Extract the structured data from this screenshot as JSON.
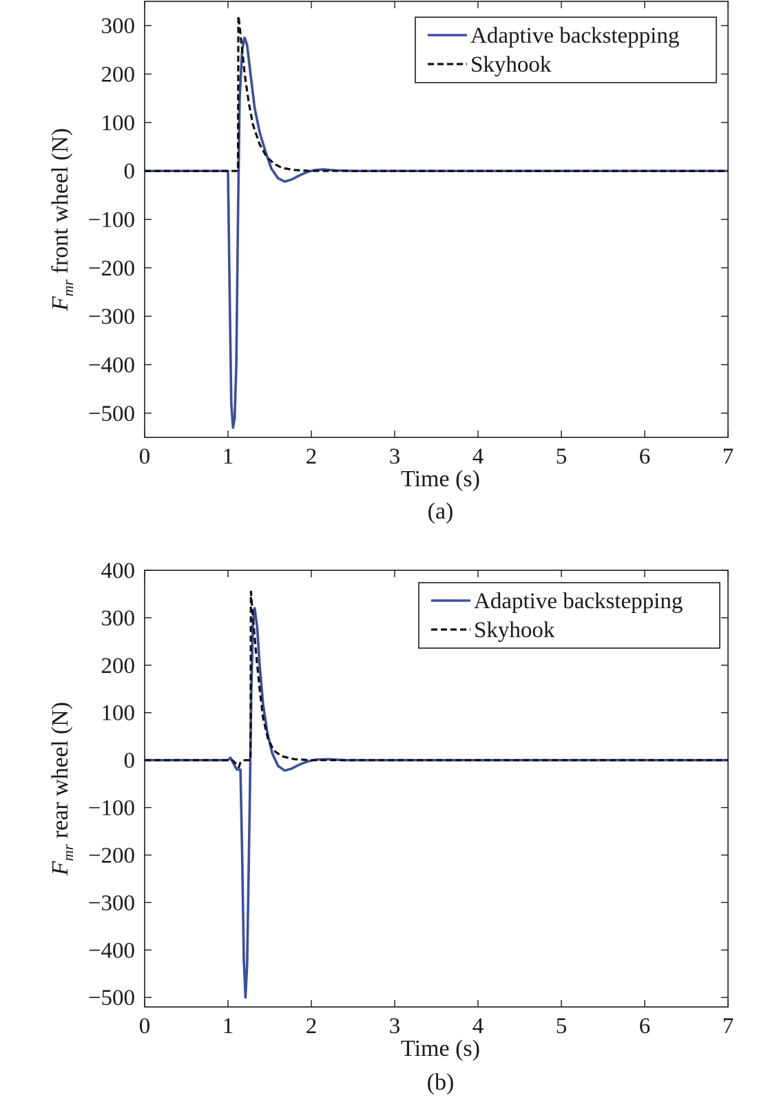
{
  "chart_data": [
    {
      "type": "line",
      "panel_label": "(a)",
      "ylabel_symbol": "F",
      "ylabel_subscript": "mr",
      "ylabel_text": " front wheel (N)",
      "xlabel": "Time (s)",
      "xlim": [
        0,
        7
      ],
      "ylim": [
        -550,
        350
      ],
      "xticks": [
        "0",
        "1",
        "2",
        "3",
        "4",
        "5",
        "6",
        "7"
      ],
      "xtick_values": [
        0,
        1,
        2,
        3,
        4,
        5,
        6,
        7
      ],
      "yticks": [
        "300",
        "200",
        "100",
        "0",
        "−100",
        "−200",
        "−300",
        "−400",
        "−500"
      ],
      "ytick_values": [
        300,
        200,
        100,
        0,
        -100,
        -200,
        -300,
        -400,
        -500
      ],
      "legend": {
        "placement": "top-right",
        "entries": [
          "Adaptive backstepping",
          "Skyhook"
        ]
      },
      "series": [
        {
          "name": "Adaptive backstepping",
          "color": "#3a4fa0",
          "style": "solid",
          "x": [
            0,
            1.0,
            1.02,
            1.04,
            1.06,
            1.08,
            1.1,
            1.12,
            1.14,
            1.17,
            1.2,
            1.23,
            1.27,
            1.32,
            1.38,
            1.45,
            1.52,
            1.6,
            1.68,
            1.76,
            1.85,
            1.95,
            2.05,
            2.15,
            2.3,
            2.5,
            7
          ],
          "y": [
            0,
            0,
            -250,
            -480,
            -530,
            -510,
            -400,
            -100,
            150,
            250,
            275,
            260,
            200,
            130,
            80,
            40,
            5,
            -15,
            -22,
            -18,
            -10,
            -2,
            2,
            3,
            1,
            0,
            0
          ]
        },
        {
          "name": "Skyhook",
          "color": "#111111",
          "style": "dashed",
          "x": [
            0,
            1.12,
            1.125,
            1.14,
            1.17,
            1.2,
            1.25,
            1.3,
            1.38,
            1.46,
            1.55,
            1.65,
            1.8,
            2.0,
            2.2,
            7
          ],
          "y": [
            0,
            0,
            320,
            300,
            250,
            200,
            140,
            95,
            55,
            30,
            15,
            6,
            2,
            0,
            0,
            0
          ]
        }
      ]
    },
    {
      "type": "line",
      "panel_label": "(b)",
      "ylabel_symbol": "F",
      "ylabel_subscript": "mr",
      "ylabel_text": " rear wheel (N)",
      "xlabel": "Time (s)",
      "xlim": [
        0,
        7
      ],
      "ylim": [
        -520,
        400
      ],
      "xticks": [
        "0",
        "1",
        "2",
        "3",
        "4",
        "5",
        "6",
        "7"
      ],
      "xtick_values": [
        0,
        1,
        2,
        3,
        4,
        5,
        6,
        7
      ],
      "yticks": [
        "400",
        "300",
        "200",
        "100",
        "0",
        "−100",
        "−200",
        "−300",
        "−400",
        "−500"
      ],
      "ytick_values": [
        400,
        300,
        200,
        100,
        0,
        -100,
        -200,
        -300,
        -400,
        -500
      ],
      "legend": {
        "placement": "top-right",
        "entries": [
          "Adaptive backstepping",
          "Skyhook"
        ]
      },
      "series": [
        {
          "name": "Adaptive backstepping",
          "color": "#3a4fa0",
          "style": "solid",
          "x": [
            0,
            1.0,
            1.03,
            1.06,
            1.09,
            1.11,
            1.15,
            1.17,
            1.19,
            1.21,
            1.23,
            1.26,
            1.28,
            1.3,
            1.32,
            1.35,
            1.38,
            1.42,
            1.47,
            1.53,
            1.6,
            1.68,
            1.76,
            1.85,
            1.95,
            2.05,
            2.2,
            2.4,
            7
          ],
          "y": [
            0,
            0,
            5,
            -5,
            -15,
            -20,
            -20,
            -200,
            -420,
            -500,
            -430,
            -100,
            150,
            290,
            320,
            280,
            200,
            120,
            60,
            15,
            -12,
            -22,
            -18,
            -10,
            -3,
            1,
            2,
            0,
            0
          ]
        },
        {
          "name": "Skyhook",
          "color": "#111111",
          "style": "dashed",
          "x": [
            0,
            1.05,
            1.1,
            1.13,
            1.15,
            1.2,
            1.27,
            1.275,
            1.3,
            1.34,
            1.38,
            1.42,
            1.48,
            1.55,
            1.65,
            1.8,
            2.0,
            2.2,
            7
          ],
          "y": [
            0,
            0,
            -8,
            -15,
            -5,
            0,
            0,
            355,
            300,
            220,
            150,
            90,
            45,
            20,
            8,
            2,
            0,
            0,
            0
          ]
        }
      ]
    }
  ]
}
